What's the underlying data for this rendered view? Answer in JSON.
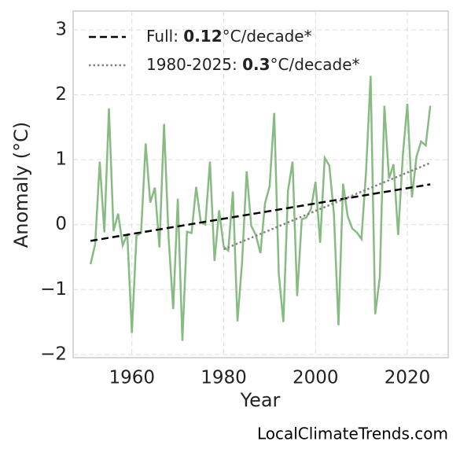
{
  "chart_data": {
    "type": "line",
    "x_label": "Year",
    "y_label": "Anomaly (°C)",
    "watermark": "LocalClimateTrends.com",
    "xlim": [
      1947.2,
      2028.9
    ],
    "ylim": [
      -2.05,
      3.29
    ],
    "xticks": [
      1960,
      1980,
      2000,
      2020
    ],
    "yticks": [
      {
        "value": -2,
        "label": "−2"
      },
      {
        "value": -1,
        "label": "−1"
      },
      0,
      1,
      2,
      3
    ],
    "grid": true,
    "legend": "upper left",
    "series": [
      {
        "color": "#88bb82",
        "style": "solid",
        "x": [
          1951,
          1952,
          1953,
          1954,
          1955,
          1956,
          1957,
          1958,
          1959,
          1960,
          1961,
          1962,
          1963,
          1964,
          1965,
          1966,
          1967,
          1968,
          1969,
          1970,
          1971,
          1972,
          1973,
          1974,
          1975,
          1976,
          1977,
          1978,
          1979,
          1980,
          1981,
          1982,
          1983,
          1984,
          1985,
          1986,
          1987,
          1988,
          1989,
          1990,
          1991,
          1992,
          1993,
          1994,
          1995,
          1996,
          1997,
          1998,
          1999,
          2000,
          2001,
          2002,
          2003,
          2004,
          2005,
          2006,
          2007,
          2008,
          2009,
          2010,
          2011,
          2012,
          2013,
          2014,
          2015,
          2016,
          2017,
          2018,
          2019,
          2020,
          2021,
          2022,
          2023,
          2024,
          2025
        ],
        "values": [
          -0.61,
          -0.3,
          0.97,
          -0.12,
          1.79,
          -0.1,
          0.17,
          -0.32,
          -0.15,
          -1.67,
          -0.17,
          -0.13,
          1.25,
          0.34,
          0.57,
          -0.35,
          1.55,
          -0.21,
          -1.3,
          0.4,
          -1.79,
          -0.11,
          -0.13,
          0.58,
          0.04,
          0.0,
          0.97,
          -0.56,
          0.22,
          -0.34,
          -0.4,
          0.51,
          -1.49,
          -0.58,
          0.82,
          -0.02,
          -0.16,
          -0.44,
          0.33,
          0.59,
          1.72,
          -0.76,
          -1.5,
          0.52,
          0.97,
          -1.1,
          0.08,
          0.11,
          0.24,
          0.66,
          -0.28,
          1.03,
          0.91,
          0.17,
          -1.55,
          0.63,
          0.13,
          -0.06,
          -0.12,
          -0.22,
          0.81,
          2.29,
          -1.38,
          -0.81,
          1.83,
          0.71,
          0.93,
          -0.16,
          1.05,
          1.86,
          0.42,
          1.05,
          1.28,
          1.22,
          1.83
        ]
      },
      {
        "name": "Full: 0.12°C/decade*",
        "color": "#000000",
        "style": "dashed",
        "x": [
          1951,
          2025
        ],
        "values": [
          -0.25,
          0.62
        ]
      },
      {
        "name": "1980-2025: 0.3°C/decade*",
        "color": "#808080",
        "style": "dotted",
        "x": [
          1980,
          2025
        ],
        "values": [
          -0.38,
          0.95
        ]
      }
    ]
  }
}
